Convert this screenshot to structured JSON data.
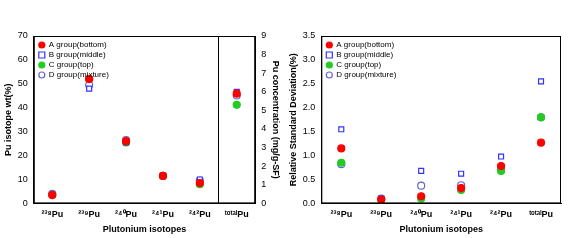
{
  "chart_data": [
    {
      "type": "scatter",
      "categories": [
        "²³⁸Pu",
        "²³⁹Pu",
        "²⁴⁰Pu",
        "²⁴¹Pu",
        "²⁴²Pu",
        "ᵗᵒᵗᵃˡPu"
      ],
      "xlabel": "Plutonium isotopes",
      "ylabel": "Pu isotope wt(%)",
      "y2label": "Pu concentration (mg/g-SF)",
      "ylim": [
        0,
        70
      ],
      "yticks": [
        0,
        10,
        20,
        30,
        40,
        50,
        60,
        70
      ],
      "y2lim": [
        0,
        9
      ],
      "y2ticks": [
        0,
        1,
        2,
        3,
        4,
        5,
        6,
        7,
        8,
        9
      ],
      "grid": false,
      "legend": "upper left",
      "series": [
        {
          "name": "A group(bottom)",
          "color": "#ff0000",
          "marker": "circle",
          "values": [
            3.5,
            52,
            26,
            11.5,
            8.5,
            null
          ]
        },
        {
          "name": "B group(middle)",
          "color": "#3333ff",
          "marker": "open_square",
          "values": [
            3.6,
            48,
            25.5,
            11.5,
            10,
            null
          ]
        },
        {
          "name": "C group(top)",
          "color": "#22cc22",
          "marker": "circle",
          "values": [
            3.5,
            52,
            25.5,
            11.5,
            8,
            null
          ]
        },
        {
          "name": "D group(mixture)",
          "color": "#6666cc",
          "marker": "open_circle",
          "values": [
            4,
            49.5,
            26.5,
            11.5,
            9.5,
            null
          ]
        },
        {
          "name": "A group(bottom)",
          "color": "#ff0000",
          "marker": "circle",
          "axis": "y2",
          "values": [
            null,
            null,
            null,
            null,
            null,
            5.9
          ]
        },
        {
          "name": "B group(middle)",
          "color": "#3333ff",
          "marker": "open_square",
          "axis": "y2",
          "values": [
            null,
            null,
            null,
            null,
            null,
            6.0
          ]
        },
        {
          "name": "C group(top)",
          "color": "#22cc22",
          "marker": "circle",
          "axis": "y2",
          "values": [
            null,
            null,
            null,
            null,
            null,
            5.3
          ]
        },
        {
          "name": "D group(mixture)",
          "color": "#6666cc",
          "marker": "open_circle",
          "axis": "y2",
          "values": [
            null,
            null,
            null,
            null,
            null,
            5.8
          ]
        }
      ]
    },
    {
      "type": "scatter",
      "categories": [
        "²³⁸Pu",
        "²³⁹Pu",
        "²⁴⁰Pu",
        "²⁴¹Pu",
        "²⁴²Pu",
        "ᵗᵒᵗᵃˡPu"
      ],
      "xlabel": "Plutonium isotopes",
      "ylabel": "Relative Standard Deviation(%)",
      "ylim": [
        0,
        3.5
      ],
      "yticks": [
        {
          "value": 0,
          "label": "0.0"
        },
        {
          "value": 0.5,
          "label": "0.5"
        },
        {
          "value": 1,
          "label": "1.0"
        },
        {
          "value": 1.5,
          "label": "1.5"
        },
        {
          "value": 2,
          "label": "2.0"
        },
        {
          "value": 2.5,
          "label": "2.5"
        },
        {
          "value": 3,
          "label": "3.0"
        },
        {
          "value": 3.5,
          "label": "3.5"
        }
      ],
      "grid": false,
      "legend": "upper left",
      "series": [
        {
          "name": "A group(bottom)",
          "color": "#ff0000",
          "marker": "circle",
          "values": [
            1.15,
            0.08,
            0.15,
            0.32,
            0.78,
            1.27
          ]
        },
        {
          "name": "B group(middle)",
          "color": "#3333ff",
          "marker": "open_square",
          "values": [
            1.55,
            0.1,
            0.68,
            0.62,
            0.98,
            2.55
          ]
        },
        {
          "name": "C group(top)",
          "color": "#22cc22",
          "marker": "circle",
          "values": [
            0.85,
            0.08,
            0.1,
            0.28,
            0.68,
            1.8
          ]
        },
        {
          "name": "D group(mixture)",
          "color": "#6666cc",
          "marker": "open_circle",
          "values": [
            0.82,
            0.1,
            0.37,
            0.38,
            0.72,
            1.8
          ]
        }
      ]
    }
  ]
}
